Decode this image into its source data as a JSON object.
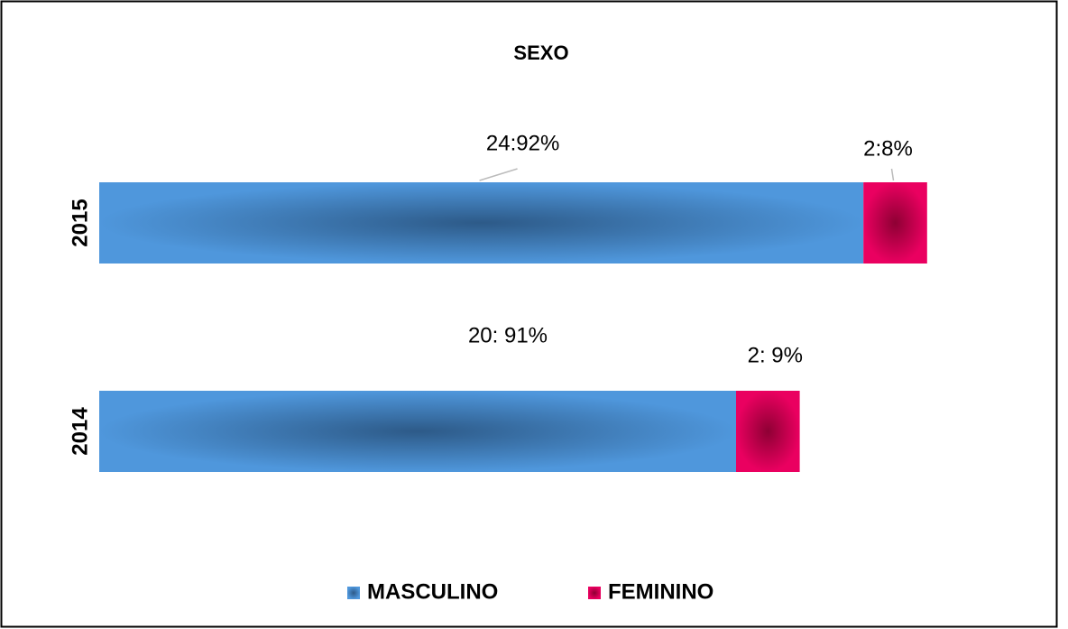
{
  "chart_data": {
    "type": "bar",
    "orientation": "horizontal",
    "stacked": true,
    "title": "SEXO",
    "categories": [
      "2015",
      "2014"
    ],
    "series": [
      {
        "name": "MASCULINO",
        "color": "#4a8fd4",
        "values": [
          24,
          20
        ],
        "value_labels": [
          "24:92%",
          "20: 91%"
        ]
      },
      {
        "name": "FEMININO",
        "color": "#e3005b",
        "values": [
          2,
          2
        ],
        "value_labels": [
          "2:8%",
          "2: 9%"
        ]
      }
    ],
    "legend": "bottom"
  }
}
